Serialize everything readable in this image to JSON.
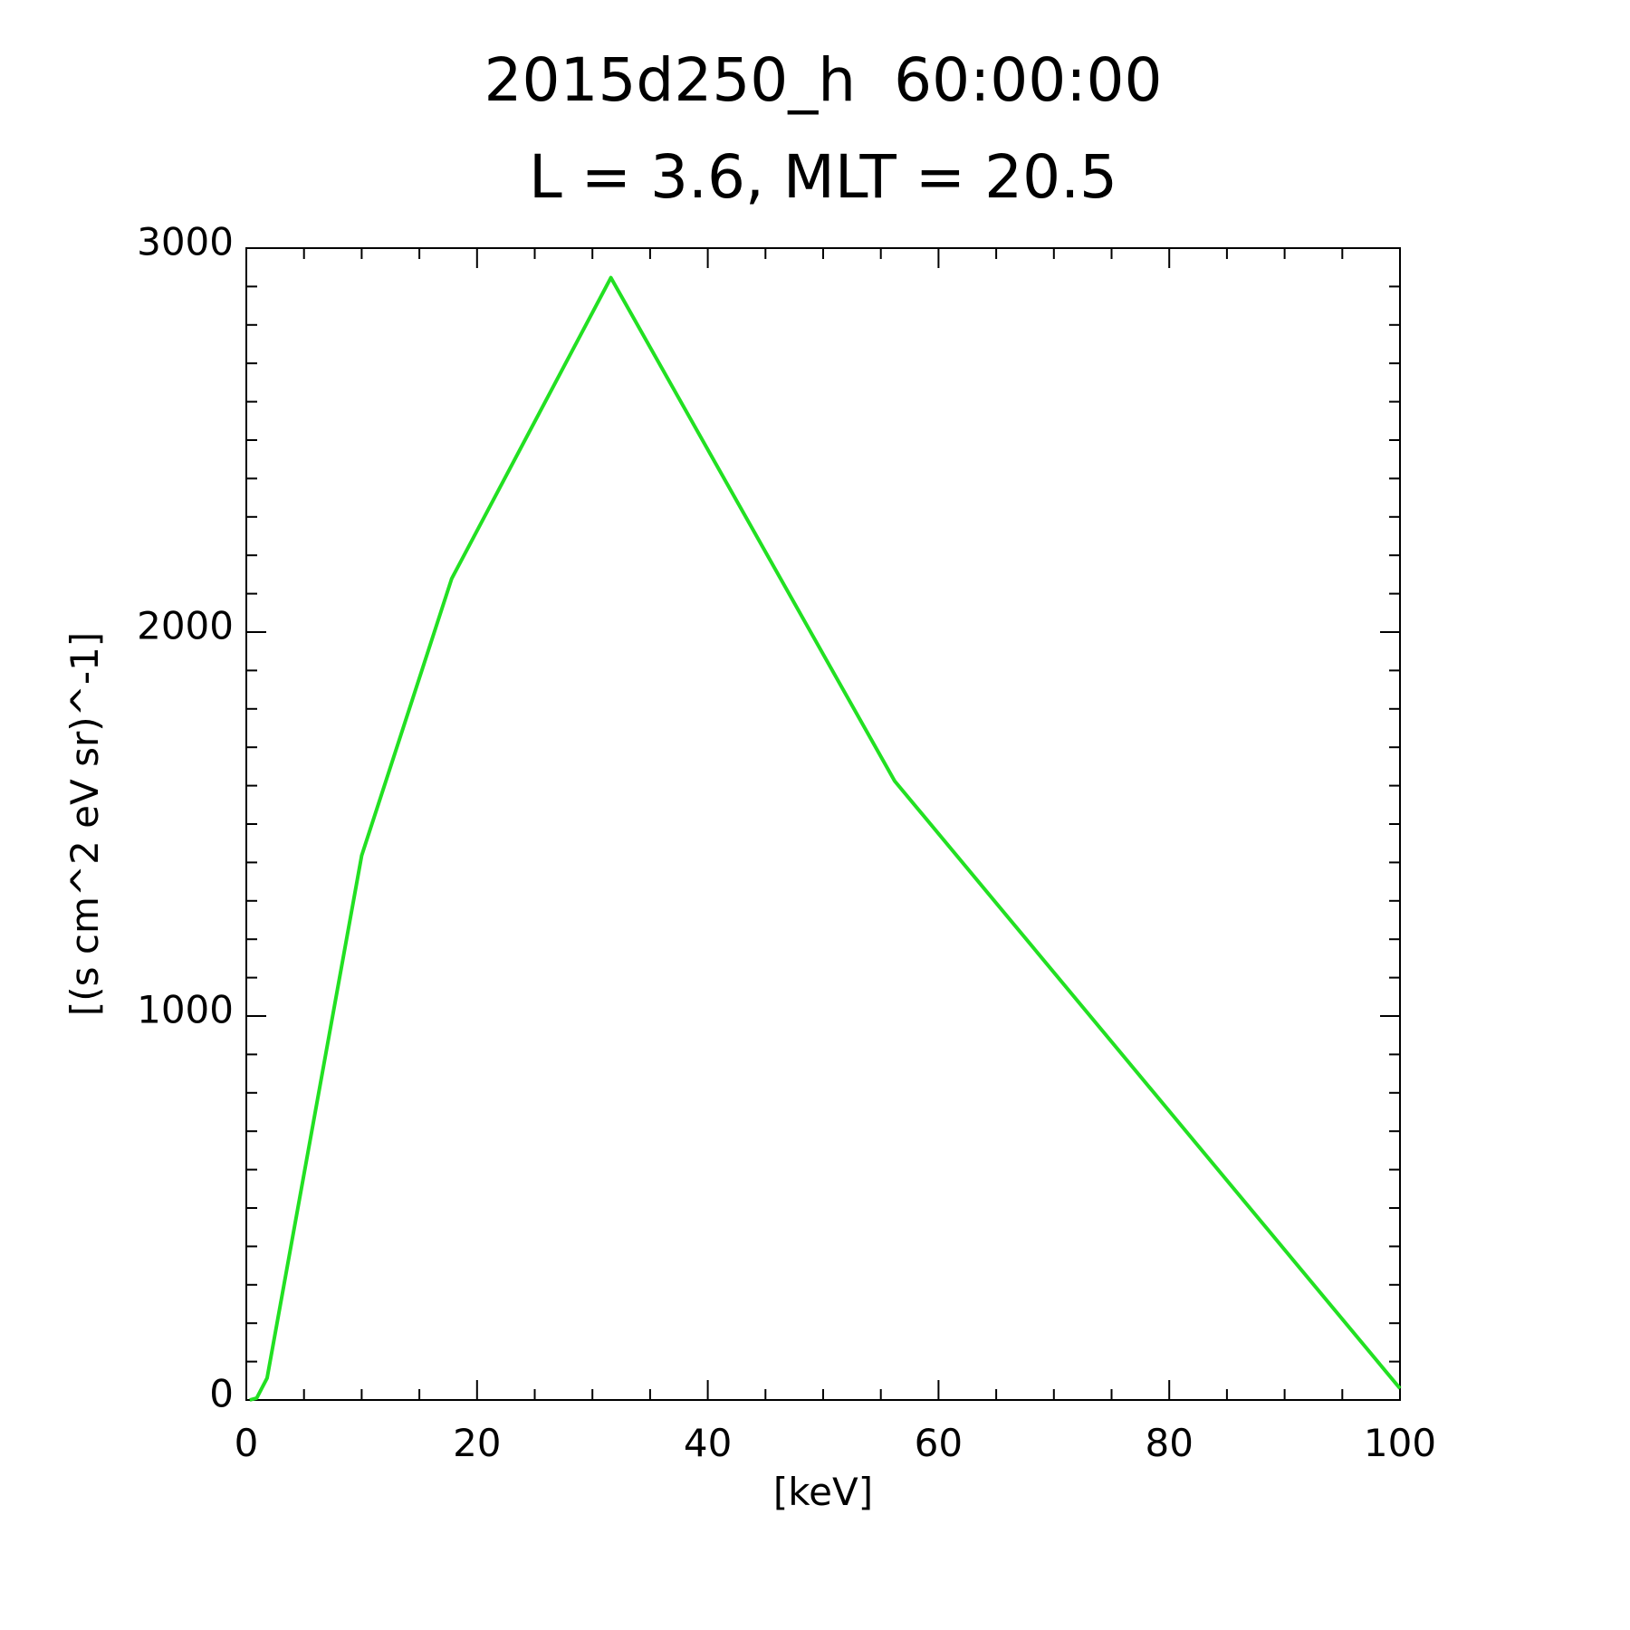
{
  "chart_data": {
    "type": "line",
    "title": "2015d250_h  60:00:00",
    "subtitle": "L = 3.6, MLT = 20.5",
    "x_label": "[keV]",
    "y_label": "[(s cm^2 eV sr)^-1]",
    "x": [
      0.3,
      0.9,
      1.8,
      10.0,
      17.8,
      31.6,
      56.2,
      100
    ],
    "series": [
      {
        "color": "#22e022",
        "values": [
          0,
          5,
          57,
          1418,
          2139,
          2923,
          1612,
          30
        ]
      }
    ],
    "xlim": [
      0,
      100
    ],
    "xticks": [
      0,
      20,
      40,
      60,
      80,
      100
    ],
    "ylim": [
      0,
      3000
    ],
    "yticks": [
      0,
      1000,
      2000,
      3000
    ],
    "grid": false
  }
}
